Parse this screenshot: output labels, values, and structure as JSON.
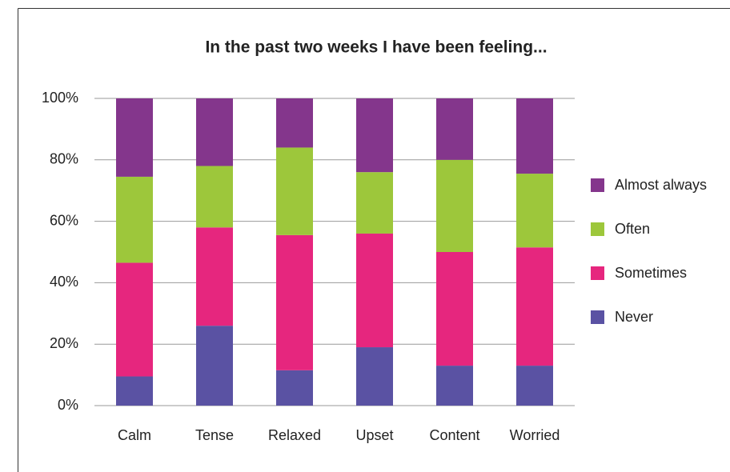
{
  "chart_data": {
    "type": "stacked_bar",
    "title": "In the past two weeks I have been feeling...",
    "categories": [
      "Calm",
      "Tense",
      "Relaxed",
      "Upset",
      "Content",
      "Worried"
    ],
    "series": [
      {
        "name": "Never",
        "color": "#5a52a3",
        "values": [
          9.5,
          26,
          11.5,
          19,
          13,
          13
        ]
      },
      {
        "name": "Sometimes",
        "color": "#e6267e",
        "values": [
          37,
          32,
          44,
          37,
          37,
          38.5
        ]
      },
      {
        "name": "Often",
        "color": "#9dc73b",
        "values": [
          28,
          20,
          28.5,
          20,
          30,
          24
        ]
      },
      {
        "name": "Almost always",
        "color": "#84368c",
        "values": [
          25.5,
          22,
          16,
          24,
          20,
          24.5
        ]
      }
    ],
    "ylim": [
      0,
      100
    ],
    "yticks": [
      {
        "value": 0,
        "label": "0%"
      },
      {
        "value": 20,
        "label": "20%"
      },
      {
        "value": 40,
        "label": "40%"
      },
      {
        "value": 60,
        "label": "60%"
      },
      {
        "value": 80,
        "label": "80%"
      },
      {
        "value": 100,
        "label": "100%"
      }
    ],
    "grid": true,
    "legend": "right"
  }
}
